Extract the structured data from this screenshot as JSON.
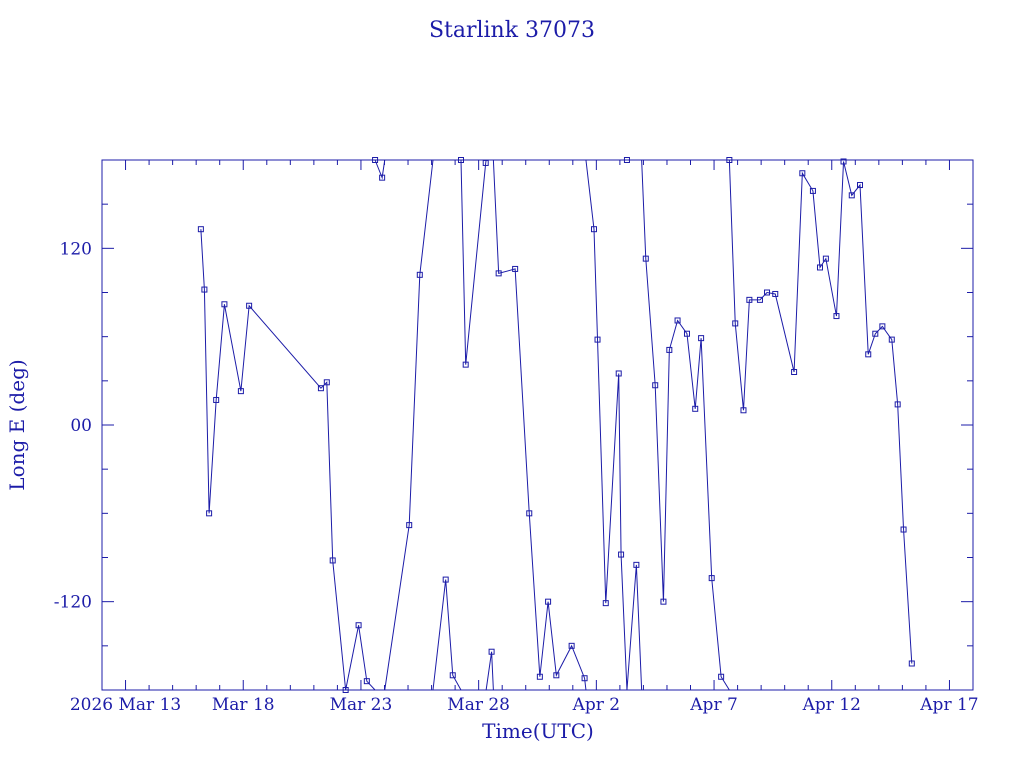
{
  "chart_data": {
    "type": "line",
    "title": "Starlink 37073",
    "xlabel": "Time(UTC)",
    "ylabel": "Long E (deg)",
    "color": "#1c1ca8",
    "x_tick_labels": [
      "2026 Mar 13",
      "Mar 18",
      "Mar 23",
      "Mar 28",
      "Apr  2",
      "Apr  7",
      "Apr 12",
      "Apr 17"
    ],
    "x_tick_values": [
      13,
      18,
      23,
      28,
      33,
      38,
      43,
      48
    ],
    "x_note": "x values are days counted from 2026 Mar 0 (Mar 13 = 13, Apr 2 = 33)",
    "xlim": [
      12.0,
      49.0
    ],
    "y_tick_labels": [
      "120",
      "00",
      "-120"
    ],
    "y_tick_values": [
      120,
      0,
      -120
    ],
    "ylim": [
      -180,
      180
    ],
    "series": [
      {
        "x": [
          16.2,
          16.35,
          16.55,
          16.85,
          17.2,
          17.9,
          18.25,
          21.3,
          21.55,
          21.8,
          22.35,
          22.9,
          23.25,
          23.6,
          23.9,
          25.05,
          25.5,
          26.6,
          26.9,
          27.25,
          27.45,
          28.3,
          28.55,
          28.85,
          29.55,
          30.15,
          30.6,
          30.95,
          31.3,
          31.95,
          32.5,
          32.9,
          33.05,
          33.4,
          33.95,
          34.05,
          34.3,
          34.7,
          35.1,
          35.5,
          35.85,
          36.1,
          36.45,
          36.85,
          37.2,
          37.45,
          37.9,
          38.3,
          38.65,
          38.9,
          39.25,
          39.5,
          39.95,
          40.25,
          40.6,
          41.4,
          41.75,
          42.2,
          42.5,
          42.75,
          43.2,
          43.5,
          43.85,
          44.2,
          44.55,
          44.85,
          45.15,
          45.55,
          45.8,
          46.05,
          46.4
        ],
        "y": [
          133,
          92,
          -60,
          17,
          82,
          23,
          81,
          25,
          29,
          -92,
          -180,
          -136,
          -174,
          180,
          168,
          -68,
          102,
          -105,
          -170,
          180,
          41,
          178,
          -154,
          103,
          106,
          -60,
          -171,
          -120,
          -170,
          -150,
          -172,
          133,
          58,
          -121,
          35,
          -88,
          180,
          -95,
          113,
          27,
          -120,
          51,
          71,
          62,
          11,
          59,
          -104,
          -171,
          180,
          69,
          10,
          85,
          85,
          90,
          89,
          36,
          171,
          159,
          107,
          113,
          74,
          179,
          156,
          163,
          48,
          62,
          67,
          58,
          14,
          -71,
          -162
        ]
      }
    ]
  }
}
